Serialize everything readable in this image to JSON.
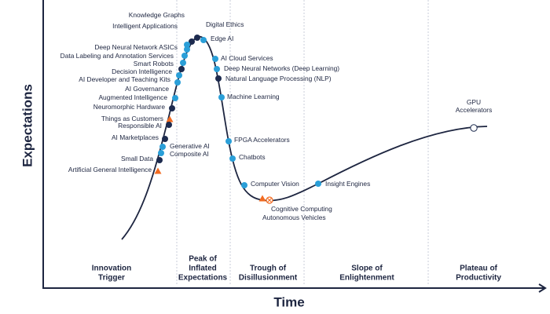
{
  "axes": {
    "x_label": "Time",
    "y_label": "Expectations"
  },
  "phases": [
    {
      "lines": [
        "Innovation",
        "Trigger"
      ]
    },
    {
      "lines": [
        "Peak of",
        "Inflated",
        "Expectations"
      ]
    },
    {
      "lines": [
        "Trough of",
        "Disillusionment"
      ]
    },
    {
      "lines": [
        "Slope of",
        "Enlightenment"
      ]
    },
    {
      "lines": [
        "Plateau of",
        "Productivity"
      ]
    }
  ],
  "nodes": [
    {
      "label": "Knowledge Graphs",
      "shape": "circle",
      "color": "#1d2b4f"
    },
    {
      "label": "Intelligent Applications",
      "shape": "circle",
      "color": "#2a9fd8"
    },
    {
      "label": "Digital Ethics",
      "shape": "circle",
      "color": "#1d2b4f"
    },
    {
      "label": "Edge AI",
      "shape": "circle",
      "color": "#2a9fd8"
    },
    {
      "label": "Deep Neural Network ASICs",
      "shape": "circle",
      "color": "#2a9fd8"
    },
    {
      "label": "Data Labeling and Annotation Services",
      "shape": "circle",
      "color": "#2a9fd8"
    },
    {
      "label": "Smart Robots",
      "shape": "circle",
      "color": "#2a9fd8"
    },
    {
      "label": "Decision Intelligence",
      "shape": "circle",
      "color": "#1d2b4f"
    },
    {
      "label": "AI Developer and Teaching Kits",
      "shape": "circle",
      "color": "#2a9fd8"
    },
    {
      "label": "AI Governance",
      "shape": "circle",
      "color": "#2a9fd8"
    },
    {
      "label": "Augmented Intelligence",
      "shape": "circle",
      "color": "#2a9fd8"
    },
    {
      "label": "Neuromorphic Hardware",
      "shape": "circle",
      "color": "#1d2b4f"
    },
    {
      "label": "Things as Customers",
      "shape": "triangle",
      "color": "#f26b21"
    },
    {
      "label": "Responsible AI",
      "shape": "circle",
      "color": "#1d2b4f"
    },
    {
      "label": "AI Marketplaces",
      "shape": "circle",
      "color": "#1d2b4f"
    },
    {
      "label": "Generative AI",
      "shape": "circle",
      "color": "#2a9fd8"
    },
    {
      "label": "Composite AI",
      "shape": "circle",
      "color": "#2a9fd8"
    },
    {
      "label": "Small Data",
      "shape": "circle",
      "color": "#1d2b4f"
    },
    {
      "label": "Artificial General Intelligence",
      "shape": "triangle",
      "color": "#f26b21"
    },
    {
      "label": "AI Cloud Services",
      "shape": "circle",
      "color": "#2a9fd8"
    },
    {
      "label": "Deep Neural Networks (Deep Learning)",
      "shape": "circle",
      "color": "#2a9fd8"
    },
    {
      "label": "Natural Language Processing (NLP)",
      "shape": "circle",
      "color": "#1d2b4f"
    },
    {
      "label": "Machine Learning",
      "shape": "circle",
      "color": "#2a9fd8"
    },
    {
      "label": "FPGA Accelerators",
      "shape": "circle",
      "color": "#2a9fd8"
    },
    {
      "label": "Chatbots",
      "shape": "circle",
      "color": "#2a9fd8"
    },
    {
      "label": "Computer Vision",
      "shape": "circle",
      "color": "#2a9fd8"
    },
    {
      "label": "Cognitive Computing",
      "shape": "crossed-circle",
      "color": "#f26b21"
    },
    {
      "label": "Autonomous Vehicles",
      "shape": "triangle",
      "color": "#f26b21"
    },
    {
      "label": "Insight Engines",
      "shape": "circle",
      "color": "#2a9fd8"
    },
    {
      "label": [
        "GPU",
        "Accelerators"
      ],
      "shape": "hollow-circle",
      "color": "#1d2b4f"
    }
  ]
}
